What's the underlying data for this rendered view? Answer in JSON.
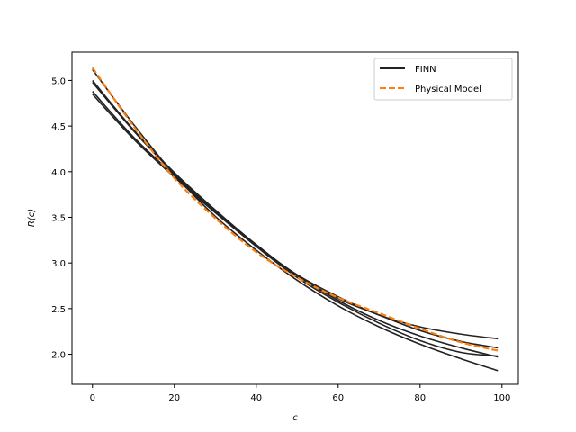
{
  "chart_data": {
    "type": "line",
    "title": "",
    "xlabel": "c",
    "ylabel": "R(c)",
    "xlim": [
      -5,
      104
    ],
    "ylim": [
      1.67,
      5.31
    ],
    "xticks": [
      0,
      20,
      40,
      60,
      80,
      100
    ],
    "yticks": [
      2.0,
      2.5,
      3.0,
      3.5,
      4.0,
      4.5,
      5.0
    ],
    "ytick_labels": [
      "2.0",
      "2.5",
      "3.0",
      "3.5",
      "4.0",
      "4.5",
      "5.0"
    ],
    "grid": false,
    "legend_position": "top-right",
    "legend": [
      {
        "label": "FINN",
        "style": "solid",
        "color": "#222222"
      },
      {
        "label": "Physical Model",
        "style": "dashed",
        "color": "#ff7f0e"
      }
    ],
    "x": [
      0,
      10,
      20,
      30,
      40,
      50,
      60,
      70,
      80,
      90,
      99
    ],
    "series": [
      {
        "group": "FINN",
        "color": "#222222",
        "style": "solid",
        "values": [
          4.85,
          4.36,
          3.94,
          3.55,
          3.19,
          2.87,
          2.63,
          2.43,
          2.3,
          2.22,
          2.17
        ]
      },
      {
        "group": "FINN",
        "color": "#222222",
        "style": "solid",
        "values": [
          4.88,
          4.38,
          3.96,
          3.56,
          3.2,
          2.86,
          2.59,
          2.37,
          2.2,
          2.07,
          1.97
        ]
      },
      {
        "group": "FINN",
        "color": "#222222",
        "style": "solid",
        "values": [
          4.98,
          4.45,
          3.98,
          3.56,
          3.18,
          2.84,
          2.57,
          2.34,
          2.15,
          2.02,
          1.98
        ]
      },
      {
        "group": "FINN",
        "color": "#222222",
        "style": "solid",
        "values": [
          5.0,
          4.46,
          3.99,
          3.58,
          3.2,
          2.86,
          2.61,
          2.43,
          2.26,
          2.14,
          2.07
        ]
      },
      {
        "group": "FINN",
        "color": "#222222",
        "style": "solid",
        "values": [
          5.12,
          4.52,
          3.97,
          3.51,
          3.14,
          2.81,
          2.53,
          2.3,
          2.11,
          1.95,
          1.82
        ]
      },
      {
        "group": "Physical Model",
        "color": "#ff7f0e",
        "style": "dashed",
        "values": [
          5.14,
          4.5,
          3.93,
          3.49,
          3.12,
          2.84,
          2.62,
          2.45,
          2.28,
          2.13,
          2.04
        ]
      }
    ]
  }
}
